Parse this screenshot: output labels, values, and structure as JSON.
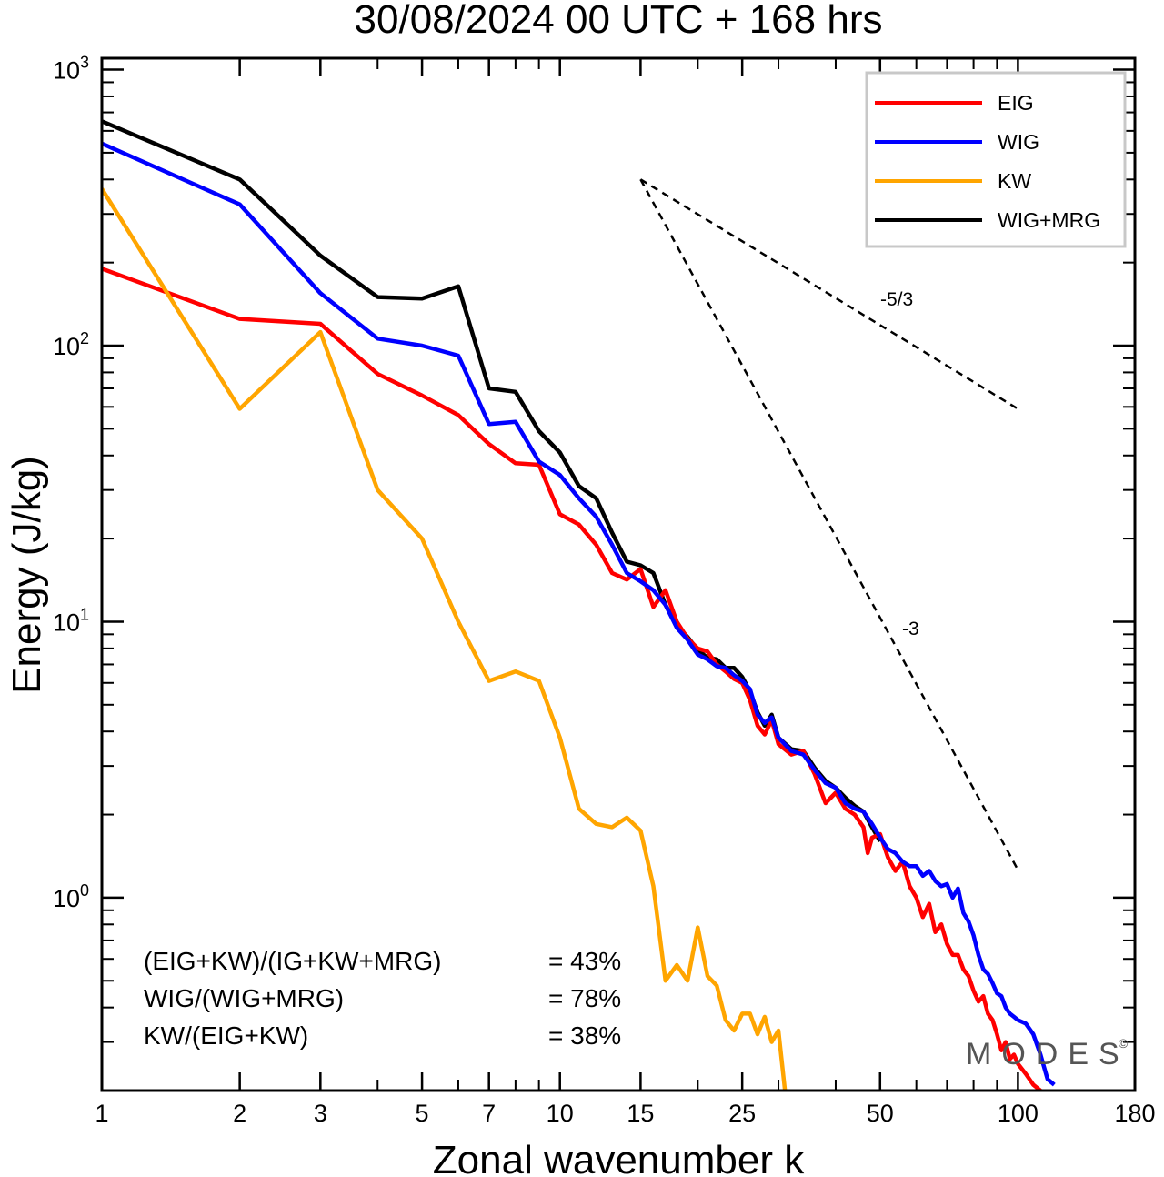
{
  "chart_data": {
    "type": "line",
    "title": "30/08/2024  00 UTC  + 168 hrs",
    "xlabel": "Zonal wavenumber k",
    "ylabel": "Energy (J/kg)",
    "x_scale": "log",
    "y_scale": "log",
    "xlim": [
      1,
      180
    ],
    "ylim": [
      0.2,
      1100
    ],
    "x_ticks": [
      "1",
      "2",
      "3",
      "5",
      "7",
      "10",
      "15",
      "25",
      "50",
      "100",
      "180"
    ],
    "y_ticks": [
      {
        "base": "10",
        "exp": "3",
        "value": 1000
      },
      {
        "base": "10",
        "exp": "2",
        "value": 100
      },
      {
        "base": "10",
        "exp": "1",
        "value": 10
      },
      {
        "base": "10",
        "exp": "0",
        "value": 1
      }
    ],
    "legend_position": "top-right",
    "series": [
      {
        "name": "EIG",
        "color": "#ff0000",
        "points": [
          [
            1,
            190
          ],
          [
            2,
            125
          ],
          [
            3,
            120
          ],
          [
            4,
            79
          ],
          [
            5,
            66
          ],
          [
            6,
            56
          ],
          [
            7,
            44
          ],
          [
            8,
            37.5
          ],
          [
            9,
            37
          ],
          [
            10,
            24.5
          ],
          [
            11,
            22.5
          ],
          [
            12,
            19
          ],
          [
            13,
            15
          ],
          [
            14,
            14.2
          ],
          [
            15,
            15.5
          ],
          [
            16,
            11.3
          ],
          [
            17,
            13
          ],
          [
            18,
            10
          ],
          [
            19,
            8.7
          ],
          [
            20,
            8
          ],
          [
            21,
            7.8
          ],
          [
            22,
            7
          ],
          [
            23,
            6.6
          ],
          [
            24,
            6.2
          ],
          [
            25,
            6
          ],
          [
            26,
            5.2
          ],
          [
            27,
            4.2
          ],
          [
            28,
            3.9
          ],
          [
            29,
            4.4
          ],
          [
            30,
            3.6
          ],
          [
            32,
            3.3
          ],
          [
            34,
            3.4
          ],
          [
            36,
            2.8
          ],
          [
            38,
            2.2
          ],
          [
            40,
            2.4
          ],
          [
            42,
            2.1
          ],
          [
            44,
            2.0
          ],
          [
            46,
            1.8
          ],
          [
            47,
            1.45
          ],
          [
            48,
            1.65
          ],
          [
            50,
            1.7
          ],
          [
            52,
            1.4
          ],
          [
            54,
            1.25
          ],
          [
            56,
            1.35
          ],
          [
            58,
            1.1
          ],
          [
            60,
            1.0
          ],
          [
            62,
            0.85
          ],
          [
            64,
            0.95
          ],
          [
            66,
            0.75
          ],
          [
            68,
            0.8
          ],
          [
            70,
            0.68
          ],
          [
            72,
            0.62
          ],
          [
            74,
            0.62
          ],
          [
            76,
            0.55
          ],
          [
            78,
            0.52
          ],
          [
            80,
            0.46
          ],
          [
            82,
            0.42
          ],
          [
            84,
            0.44
          ],
          [
            86,
            0.38
          ],
          [
            88,
            0.36
          ],
          [
            90,
            0.32
          ],
          [
            92,
            0.28
          ],
          [
            94,
            0.3
          ],
          [
            96,
            0.26
          ],
          [
            98,
            0.27
          ],
          [
            100,
            0.25
          ],
          [
            104,
            0.23
          ],
          [
            108,
            0.21
          ],
          [
            112,
            0.2
          ]
        ]
      },
      {
        "name": "WIG",
        "color": "#0000ff",
        "points": [
          [
            1,
            540
          ],
          [
            2,
            325
          ],
          [
            3,
            155
          ],
          [
            4,
            106
          ],
          [
            5,
            100
          ],
          [
            6,
            92
          ],
          [
            7,
            52
          ],
          [
            8,
            53
          ],
          [
            9,
            38
          ],
          [
            10,
            34
          ],
          [
            11,
            28
          ],
          [
            12,
            24
          ],
          [
            13,
            19
          ],
          [
            14,
            15
          ],
          [
            15,
            14
          ],
          [
            16,
            13
          ],
          [
            17,
            11.5
          ],
          [
            18,
            9.5
          ],
          [
            19,
            8.6
          ],
          [
            20,
            7.6
          ],
          [
            21,
            7.3
          ],
          [
            22,
            6.9
          ],
          [
            23,
            6.8
          ],
          [
            24,
            6.4
          ],
          [
            25,
            6.1
          ],
          [
            26,
            5.7
          ],
          [
            27,
            4.6
          ],
          [
            28,
            4.3
          ],
          [
            29,
            4.5
          ],
          [
            30,
            3.8
          ],
          [
            32,
            3.4
          ],
          [
            34,
            3.3
          ],
          [
            36,
            2.9
          ],
          [
            38,
            2.6
          ],
          [
            40,
            2.5
          ],
          [
            42,
            2.2
          ],
          [
            44,
            2.1
          ],
          [
            46,
            2.05
          ],
          [
            48,
            1.85
          ],
          [
            50,
            1.65
          ],
          [
            52,
            1.5
          ],
          [
            54,
            1.45
          ],
          [
            56,
            1.35
          ],
          [
            58,
            1.3
          ],
          [
            60,
            1.3
          ],
          [
            62,
            1.2
          ],
          [
            64,
            1.25
          ],
          [
            66,
            1.15
          ],
          [
            68,
            1.1
          ],
          [
            70,
            1.12
          ],
          [
            72,
            1.0
          ],
          [
            74,
            1.08
          ],
          [
            76,
            0.88
          ],
          [
            78,
            0.82
          ],
          [
            80,
            0.73
          ],
          [
            82,
            0.62
          ],
          [
            84,
            0.55
          ],
          [
            86,
            0.53
          ],
          [
            88,
            0.49
          ],
          [
            90,
            0.45
          ],
          [
            92,
            0.44
          ],
          [
            94,
            0.4
          ],
          [
            96,
            0.38
          ],
          [
            98,
            0.37
          ],
          [
            100,
            0.36
          ],
          [
            104,
            0.35
          ],
          [
            108,
            0.32
          ],
          [
            112,
            0.27
          ],
          [
            116,
            0.22
          ],
          [
            120,
            0.21
          ]
        ]
      },
      {
        "name": "KW",
        "color": "#ffa500",
        "points": [
          [
            1,
            370
          ],
          [
            2,
            59
          ],
          [
            3,
            112
          ],
          [
            4,
            30
          ],
          [
            5,
            20
          ],
          [
            6,
            10
          ],
          [
            7,
            6.1
          ],
          [
            8,
            6.6
          ],
          [
            9,
            6.1
          ],
          [
            10,
            3.8
          ],
          [
            11,
            2.1
          ],
          [
            12,
            1.85
          ],
          [
            13,
            1.8
          ],
          [
            14,
            1.95
          ],
          [
            15,
            1.75
          ],
          [
            16,
            1.1
          ],
          [
            17,
            0.5
          ],
          [
            18,
            0.57
          ],
          [
            19,
            0.5
          ],
          [
            20,
            0.78
          ],
          [
            21,
            0.52
          ],
          [
            22,
            0.48
          ],
          [
            23,
            0.36
          ],
          [
            24,
            0.33
          ],
          [
            25,
            0.38
          ],
          [
            26,
            0.38
          ],
          [
            27,
            0.32
          ],
          [
            28,
            0.37
          ],
          [
            29,
            0.3
          ],
          [
            30,
            0.33
          ],
          [
            31,
            0.2
          ]
        ]
      },
      {
        "name": "WIG+MRG",
        "color": "#000000",
        "points": [
          [
            1,
            650
          ],
          [
            2,
            400
          ],
          [
            3,
            212
          ],
          [
            4,
            150
          ],
          [
            5,
            148
          ],
          [
            6,
            164
          ],
          [
            7,
            70
          ],
          [
            8,
            68
          ],
          [
            9,
            49
          ],
          [
            10,
            41
          ],
          [
            11,
            31
          ],
          [
            12,
            28
          ],
          [
            13,
            21
          ],
          [
            14,
            16.5
          ],
          [
            15,
            16
          ],
          [
            16,
            15
          ],
          [
            17,
            11.5
          ],
          [
            18,
            9.7
          ],
          [
            19,
            8.8
          ],
          [
            20,
            7.9
          ],
          [
            21,
            7.4
          ],
          [
            22,
            7.3
          ],
          [
            23,
            6.8
          ],
          [
            24,
            6.8
          ],
          [
            25,
            6.3
          ],
          [
            26,
            5.6
          ],
          [
            27,
            4.7
          ],
          [
            28,
            4.2
          ],
          [
            29,
            4.6
          ],
          [
            30,
            3.8
          ],
          [
            32,
            3.45
          ],
          [
            34,
            3.4
          ],
          [
            36,
            2.95
          ],
          [
            38,
            2.65
          ],
          [
            40,
            2.5
          ],
          [
            42,
            2.3
          ],
          [
            44,
            2.15
          ],
          [
            46,
            2.05
          ],
          [
            48,
            1.8
          ],
          [
            50,
            1.6
          ]
        ]
      }
    ],
    "reference_lines": [
      {
        "label": "-5/3",
        "slope": -1.6667,
        "from": [
          15,
          400
        ],
        "to": [
          100,
          59
        ]
      },
      {
        "label": "-3",
        "slope": -3,
        "from": [
          15,
          400
        ],
        "to": [
          100,
          1.26
        ]
      }
    ],
    "annotations": [
      {
        "label": "(EIG+KW)/(IG+KW+MRG)",
        "value": "= 43%"
      },
      {
        "label": "WIG/(WIG+MRG)",
        "value": "= 78%"
      },
      {
        "label": "KW/(EIG+KW)",
        "value": "= 38%"
      }
    ],
    "brand": "MODES",
    "brand_mark": "©"
  }
}
